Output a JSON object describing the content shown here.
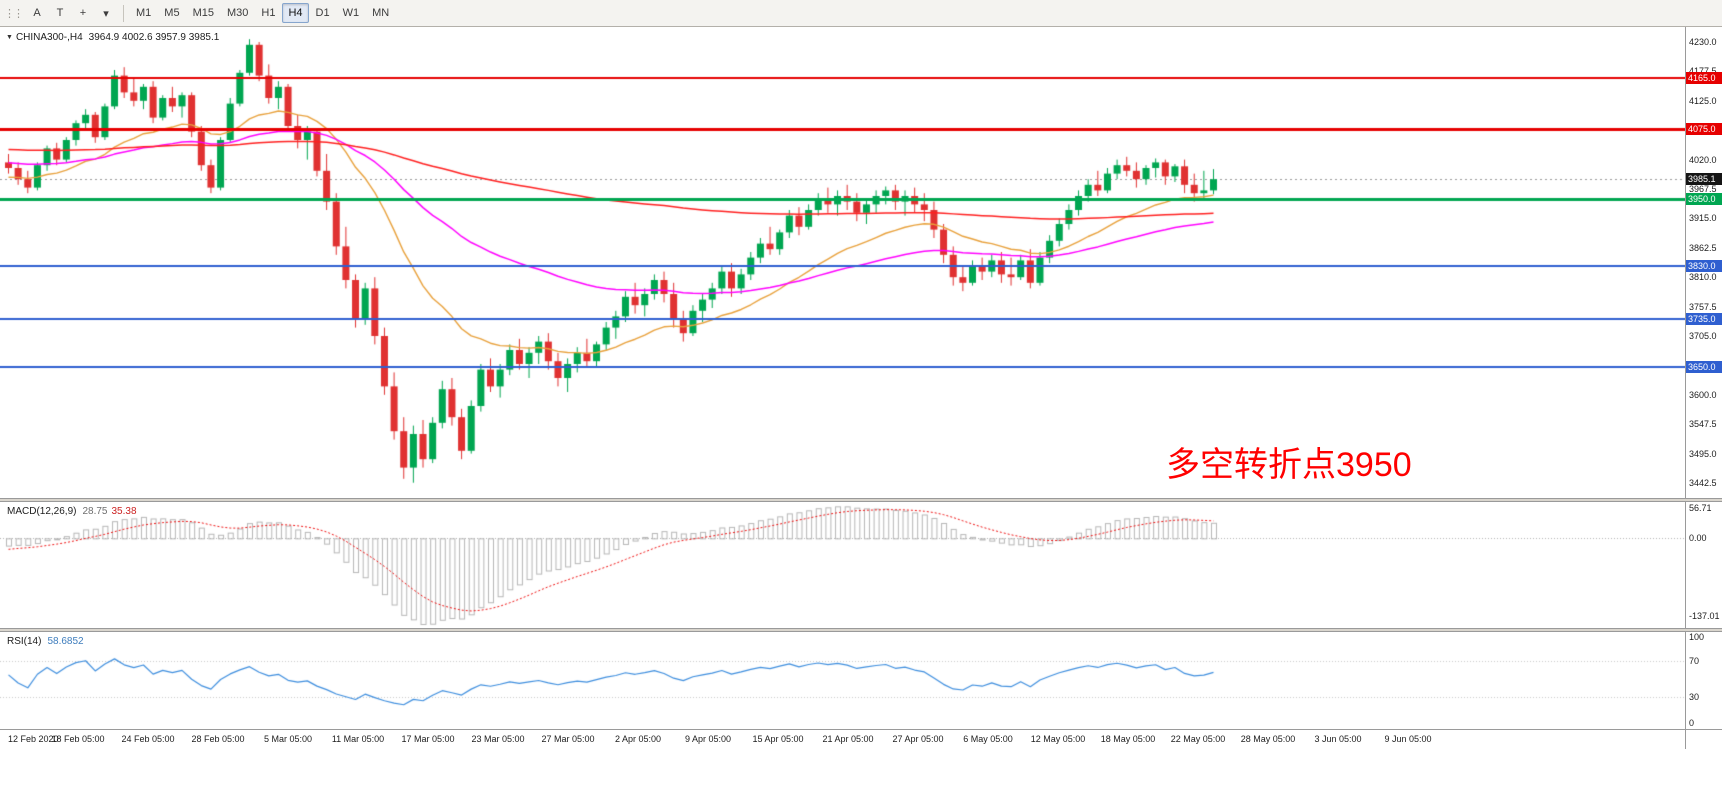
{
  "toolbar": {
    "tools": [
      {
        "name": "text-label-tool-button",
        "glyph": "A"
      },
      {
        "name": "text-tool-button",
        "glyph": "T"
      },
      {
        "name": "crosshair-tool-button",
        "glyph": "+"
      },
      {
        "name": "shapes-dropdown-button",
        "glyph": "▾"
      }
    ],
    "timeframes": [
      {
        "label": "M1",
        "active": false
      },
      {
        "label": "M5",
        "active": false
      },
      {
        "label": "M15",
        "active": false
      },
      {
        "label": "M30",
        "active": false
      },
      {
        "label": "H1",
        "active": false
      },
      {
        "label": "H4",
        "active": true
      },
      {
        "label": "D1",
        "active": false
      },
      {
        "label": "W1",
        "active": false
      },
      {
        "label": "MN",
        "active": false
      }
    ]
  },
  "chart": {
    "header": {
      "dropdown_icon": "▼",
      "symbol": "CHINA300-,H4",
      "ohlc": "3964.9 4002.6 3957.9 3985.1"
    },
    "annotation": {
      "text": "多空转折点3950",
      "color": "#FF0000"
    },
    "price_axis": {
      "top_price": 4230.0,
      "step": 52.5,
      "labels": [
        "4230.0",
        "4177.5",
        "4125.0",
        "4072.5",
        "4020.0",
        "3967.5",
        "3915.0",
        "3862.5",
        "3810.0",
        "3757.5",
        "3705.0",
        "3652.5",
        "3600.0",
        "3547.5",
        "3495.0",
        "3442.5"
      ]
    },
    "hlines": [
      {
        "price": 4165.0,
        "color": "#E60000",
        "width": 2,
        "style": "solid",
        "label": "4165.0",
        "badge_color": "#E60000"
      },
      {
        "price": 4075.0,
        "color": "#E60000",
        "width": 3,
        "style": "solid",
        "label": "4075.0",
        "badge_color": "#E60000"
      },
      {
        "price": 3985.1,
        "color": "#999999",
        "width": 1,
        "style": "dot",
        "label": "3985.1",
        "badge_color": "#151515"
      },
      {
        "price": 3950.0,
        "color": "#00A651",
        "width": 3,
        "style": "solid",
        "label": "3950.0",
        "badge_color": "#00A651"
      },
      {
        "price": 3830.0,
        "color": "#2F5FD0",
        "width": 2,
        "style": "solid",
        "label": "3830.0",
        "badge_color": "#2F5FD0"
      },
      {
        "price": 3735.0,
        "color": "#2F5FD0",
        "width": 2,
        "style": "solid",
        "label": "3735.0",
        "badge_color": "#2F5FD0"
      },
      {
        "price": 3650.0,
        "color": "#2F5FD0",
        "width": 2,
        "style": "solid",
        "label": "3650.0",
        "badge_color": "#2F5FD0"
      }
    ],
    "colors": {
      "up": "#00A651",
      "down": "#E03131",
      "macd_hist": "#b6b6b6",
      "macd_signal": "#EE1111",
      "rsi": "#3E8EDE",
      "level_dotted": "#c8c8c8"
    }
  },
  "macd_panel": {
    "title": "MACD(12,26,9)",
    "main_value": "28.75",
    "signal_value": "35.38",
    "scale": [
      "56.71",
      "0.00",
      "-137.01"
    ],
    "scale_values": [
      56.71,
      0,
      -137.01
    ]
  },
  "rsi_panel": {
    "title": "RSI(14)",
    "value": "58.6852",
    "scale": [
      "100",
      "70",
      "30",
      "0"
    ],
    "scale_values": [
      100,
      70,
      30,
      0
    ],
    "levels": [
      70,
      30
    ]
  },
  "chart_data": {
    "type": "candlestick",
    "symbol": "CHINA300-",
    "timeframe": "H4",
    "title": "CHINA300-,H4",
    "ohlc_current": {
      "open": 3964.9,
      "high": 4002.6,
      "low": 3957.9,
      "close": 3985.1
    },
    "ylim": [
      3442.5,
      4230.0
    ],
    "x_labels": [
      "12 Feb 2020",
      "18 Feb 05:00",
      "24 Feb 05:00",
      "28 Feb 05:00",
      "5 Mar 05:00",
      "11 Mar 05:00",
      "17 Mar 05:00",
      "23 Mar 05:00",
      "27 Mar 05:00",
      "2 Apr 05:00",
      "9 Apr 05:00",
      "15 Apr 05:00",
      "21 Apr 05:00",
      "27 Apr 05:00",
      "6 May 05:00",
      "12 May 05:00",
      "18 May 05:00",
      "22 May 05:00",
      "28 May 05:00",
      "3 Jun 05:00",
      "9 Jun 05:00"
    ],
    "horizontal_levels": [
      4165.0,
      4075.0,
      3950.0,
      3830.0,
      3735.0,
      3650.0
    ],
    "annotation_text": "多空转折点3950",
    "moving_averages": [
      {
        "name": "fast-ma",
        "period": 21,
        "color": "#E8A13C",
        "width": 1.4
      },
      {
        "name": "mid-ma",
        "period": 55,
        "color": "#FF00FF",
        "width": 1.5
      },
      {
        "name": "slow-ma",
        "period": 200,
        "color": "#FF2020",
        "width": 1.5
      }
    ],
    "macd": {
      "fast": 12,
      "slow": 26,
      "signal": 9,
      "last_main": 28.75,
      "last_signal": 35.38,
      "scale_min": -137.01,
      "scale_max": 56.71
    },
    "rsi": {
      "period": 14,
      "last_value": 58.6852,
      "levels": [
        70,
        30
      ]
    },
    "prehistory_closes": [
      4050,
      4060,
      4070,
      4080,
      4085,
      4080,
      4070,
      4060,
      4050,
      4040,
      4030,
      4020,
      4010,
      4000,
      3995,
      3990,
      3985,
      3980,
      3975,
      3970,
      3965,
      3960,
      3955,
      3950,
      3950,
      3955,
      3960,
      3970,
      3985,
      4000
    ],
    "candles": [
      [
        4015,
        4030,
        3995,
        4005
      ],
      [
        4005,
        4015,
        3975,
        3985
      ],
      [
        3985,
        4000,
        3960,
        3970
      ],
      [
        3970,
        4015,
        3965,
        4010
      ],
      [
        4010,
        4045,
        4000,
        4040
      ],
      [
        4040,
        4050,
        4010,
        4020
      ],
      [
        4020,
        4060,
        4015,
        4055
      ],
      [
        4055,
        4090,
        4045,
        4085
      ],
      [
        4085,
        4110,
        4075,
        4100
      ],
      [
        4100,
        4105,
        4050,
        4060
      ],
      [
        4060,
        4120,
        4055,
        4115
      ],
      [
        4115,
        4180,
        4110,
        4170
      ],
      [
        4170,
        4185,
        4130,
        4140
      ],
      [
        4140,
        4165,
        4115,
        4125
      ],
      [
        4125,
        4155,
        4110,
        4150
      ],
      [
        4150,
        4160,
        4085,
        4095
      ],
      [
        4095,
        4135,
        4090,
        4130
      ],
      [
        4130,
        4150,
        4105,
        4115
      ],
      [
        4115,
        4140,
        4095,
        4135
      ],
      [
        4135,
        4140,
        4060,
        4070
      ],
      [
        4070,
        4080,
        4000,
        4010
      ],
      [
        4010,
        4020,
        3960,
        3970
      ],
      [
        3970,
        4060,
        3965,
        4055
      ],
      [
        4055,
        4130,
        4050,
        4120
      ],
      [
        4120,
        4180,
        4115,
        4175
      ],
      [
        4175,
        4235,
        4170,
        4225
      ],
      [
        4225,
        4230,
        4160,
        4170
      ],
      [
        4170,
        4190,
        4120,
        4130
      ],
      [
        4130,
        4160,
        4110,
        4150
      ],
      [
        4150,
        4155,
        4070,
        4080
      ],
      [
        4080,
        4100,
        4040,
        4055
      ],
      [
        4055,
        4080,
        4020,
        4070
      ],
      [
        4070,
        4075,
        3990,
        4000
      ],
      [
        4000,
        4030,
        3930,
        3945
      ],
      [
        3945,
        3960,
        3850,
        3865
      ],
      [
        3865,
        3900,
        3790,
        3805
      ],
      [
        3805,
        3815,
        3720,
        3735
      ],
      [
        3735,
        3800,
        3725,
        3790
      ],
      [
        3790,
        3810,
        3690,
        3705
      ],
      [
        3705,
        3720,
        3600,
        3615
      ],
      [
        3615,
        3640,
        3520,
        3535
      ],
      [
        3535,
        3560,
        3450,
        3470
      ],
      [
        3470,
        3545,
        3443,
        3530
      ],
      [
        3530,
        3555,
        3470,
        3485
      ],
      [
        3485,
        3560,
        3478,
        3550
      ],
      [
        3550,
        3625,
        3540,
        3610
      ],
      [
        3610,
        3630,
        3545,
        3560
      ],
      [
        3560,
        3575,
        3485,
        3500
      ],
      [
        3500,
        3590,
        3495,
        3580
      ],
      [
        3580,
        3655,
        3570,
        3645
      ],
      [
        3645,
        3665,
        3605,
        3615
      ],
      [
        3615,
        3655,
        3595,
        3645
      ],
      [
        3645,
        3690,
        3635,
        3680
      ],
      [
        3680,
        3700,
        3645,
        3655
      ],
      [
        3655,
        3685,
        3630,
        3675
      ],
      [
        3675,
        3705,
        3655,
        3695
      ],
      [
        3695,
        3710,
        3645,
        3660
      ],
      [
        3660,
        3675,
        3615,
        3630
      ],
      [
        3630,
        3665,
        3605,
        3655
      ],
      [
        3655,
        3685,
        3640,
        3675
      ],
      [
        3675,
        3700,
        3650,
        3660
      ],
      [
        3660,
        3695,
        3650,
        3690
      ],
      [
        3690,
        3730,
        3680,
        3720
      ],
      [
        3720,
        3750,
        3700,
        3740
      ],
      [
        3740,
        3785,
        3730,
        3775
      ],
      [
        3775,
        3800,
        3745,
        3760
      ],
      [
        3760,
        3790,
        3740,
        3780
      ],
      [
        3780,
        3815,
        3770,
        3805
      ],
      [
        3805,
        3820,
        3765,
        3780
      ],
      [
        3780,
        3800,
        3720,
        3735
      ],
      [
        3735,
        3750,
        3695,
        3710
      ],
      [
        3710,
        3760,
        3705,
        3750
      ],
      [
        3750,
        3780,
        3730,
        3770
      ],
      [
        3770,
        3800,
        3755,
        3790
      ],
      [
        3790,
        3830,
        3780,
        3820
      ],
      [
        3820,
        3835,
        3775,
        3790
      ],
      [
        3790,
        3825,
        3780,
        3815
      ],
      [
        3815,
        3855,
        3805,
        3845
      ],
      [
        3845,
        3880,
        3835,
        3870
      ],
      [
        3870,
        3900,
        3850,
        3860
      ],
      [
        3860,
        3895,
        3850,
        3890
      ],
      [
        3890,
        3930,
        3880,
        3920
      ],
      [
        3920,
        3935,
        3885,
        3900
      ],
      [
        3900,
        3940,
        3895,
        3930
      ],
      [
        3930,
        3960,
        3920,
        3950
      ],
      [
        3950,
        3970,
        3925,
        3940
      ],
      [
        3940,
        3965,
        3920,
        3955
      ],
      [
        3955,
        3975,
        3930,
        3945
      ],
      [
        3945,
        3960,
        3910,
        3925
      ],
      [
        3925,
        3950,
        3905,
        3940
      ],
      [
        3940,
        3965,
        3925,
        3955
      ],
      [
        3955,
        3972,
        3940,
        3965
      ],
      [
        3965,
        3975,
        3930,
        3945
      ],
      [
        3945,
        3965,
        3920,
        3955
      ],
      [
        3955,
        3970,
        3925,
        3940
      ],
      [
        3940,
        3960,
        3910,
        3930
      ],
      [
        3930,
        3945,
        3880,
        3895
      ],
      [
        3895,
        3905,
        3835,
        3850
      ],
      [
        3850,
        3865,
        3795,
        3810
      ],
      [
        3810,
        3830,
        3785,
        3800
      ],
      [
        3800,
        3840,
        3795,
        3830
      ],
      [
        3830,
        3845,
        3805,
        3820
      ],
      [
        3820,
        3850,
        3810,
        3840
      ],
      [
        3840,
        3855,
        3800,
        3815
      ],
      [
        3815,
        3845,
        3795,
        3810
      ],
      [
        3810,
        3850,
        3805,
        3840
      ],
      [
        3840,
        3860,
        3790,
        3800
      ],
      [
        3800,
        3855,
        3795,
        3845
      ],
      [
        3845,
        3885,
        3835,
        3875
      ],
      [
        3875,
        3915,
        3865,
        3905
      ],
      [
        3905,
        3940,
        3895,
        3930
      ],
      [
        3930,
        3965,
        3920,
        3955
      ],
      [
        3955,
        3985,
        3945,
        3975
      ],
      [
        3975,
        4000,
        3955,
        3965
      ],
      [
        3965,
        4005,
        3960,
        3995
      ],
      [
        3995,
        4020,
        3985,
        4010
      ],
      [
        4010,
        4025,
        3990,
        4000
      ],
      [
        4000,
        4015,
        3970,
        3985
      ],
      [
        3985,
        4010,
        3975,
        4005
      ],
      [
        4005,
        4022,
        3988,
        4015
      ],
      [
        4015,
        4020,
        3975,
        3990
      ],
      [
        3990,
        4012,
        3980,
        4008
      ],
      [
        4008,
        4020,
        3960,
        3975
      ],
      [
        3975,
        3995,
        3945,
        3960
      ],
      [
        3960,
        4000,
        3950,
        3965
      ],
      [
        3965,
        4003,
        3958,
        3985
      ]
    ]
  }
}
